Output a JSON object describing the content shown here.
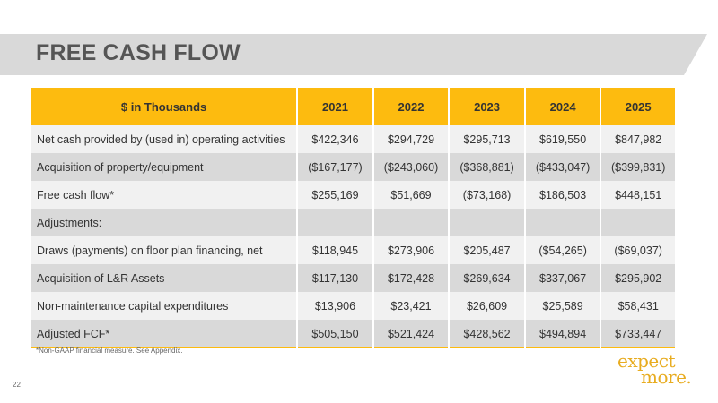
{
  "title": "FREE CASH FLOW",
  "table": {
    "header": [
      "$ in Thousands",
      "2021",
      "2022",
      "2023",
      "2024",
      "2025"
    ],
    "rows": [
      [
        "Net cash provided by (used in) operating activities",
        "$422,346",
        "$294,729",
        "$295,713",
        "$619,550",
        "$847,982"
      ],
      [
        "Acquisition of property/equipment",
        "($167,177)",
        "($243,060)",
        "($368,881)",
        "($433,047)",
        "($399,831)"
      ],
      [
        "Free cash flow*",
        "$255,169",
        "$51,669",
        "($73,168)",
        "$186,503",
        "$448,151"
      ],
      [
        "Adjustments:",
        "",
        "",
        "",
        "",
        ""
      ],
      [
        "Draws (payments) on floor plan financing, net",
        "$118,945",
        "$273,906",
        "$205,487",
        "($54,265)",
        "($69,037)"
      ],
      [
        "Acquisition of L&R Assets",
        "$117,130",
        "$172,428",
        "$269,634",
        "$337,067",
        "$295,902"
      ],
      [
        "Non-maintenance capital expenditures",
        "$13,906",
        "$23,421",
        "$26,609",
        "$25,589",
        "$58,431"
      ],
      [
        "Adjusted FCF*",
        "$505,150",
        "$521,424",
        "$428,562",
        "$494,894",
        "$733,447"
      ]
    ]
  },
  "footnote": "*Non-GAAP financial measure.  See Appendix.",
  "page_number": "22",
  "logo": {
    "line1": "expect",
    "line2": "more."
  },
  "colors": {
    "header_gold": "#fdbb0f",
    "title_band": "#d9d9d9",
    "logo": "#e8ac20"
  }
}
